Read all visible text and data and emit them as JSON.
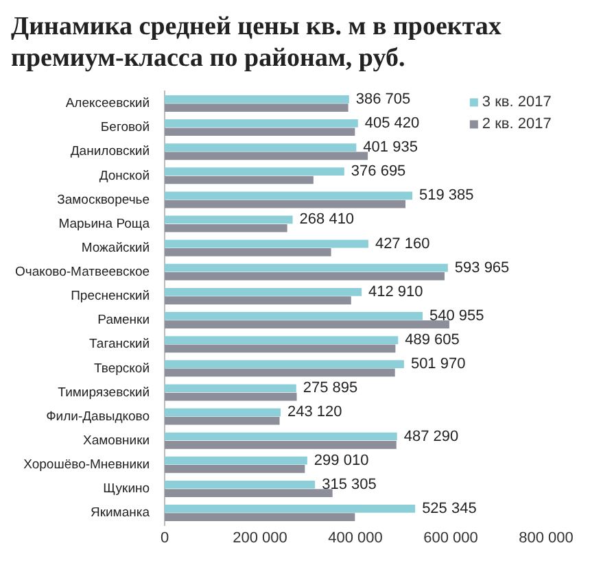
{
  "chart_data": {
    "type": "bar",
    "orientation": "horizontal",
    "title": "Динамика средней цены кв. м в проектах премиум-класса по районам, руб.",
    "categories": [
      "Алексеевский",
      "Беговой",
      "Даниловский",
      "Донской",
      "Замоскворечье",
      "Марьина Роща",
      "Можайский",
      "Очаково-Матвеевское",
      "Пресненский",
      "Раменки",
      "Таганский",
      "Тверской",
      "Тимирязевский",
      "Фили-Давыдково",
      "Хамовники",
      "Хорошёво-Мневники",
      "Щукино",
      "Якиманка"
    ],
    "series": [
      {
        "name": "3 кв. 2017",
        "color": "#8ccfd8",
        "values": [
          386705,
          405420,
          401935,
          376695,
          519385,
          268410,
          427160,
          593965,
          412910,
          540955,
          489605,
          501970,
          275895,
          243120,
          487290,
          299010,
          315305,
          525345
        ],
        "value_labels": [
          "386 705",
          "405 420",
          "401 935",
          "376 695",
          "519 385",
          "268 410",
          "427 160",
          "593 965",
          "412 910",
          "540 955",
          "489 605",
          "501 970",
          "275 895",
          "243 120",
          "487 290",
          "299 010",
          "315 305",
          "525 345"
        ]
      },
      {
        "name": "2 кв. 2017",
        "color": "#8c8f99",
        "values": [
          385000,
          399000,
          426000,
          312000,
          505000,
          257000,
          349000,
          587000,
          391000,
          597000,
          484000,
          483000,
          277000,
          241000,
          486000,
          294000,
          352000,
          399000
        ]
      }
    ],
    "xlim": [
      0,
      800000
    ],
    "xticks": [
      {
        "value": 0,
        "label": "0"
      },
      {
        "value": 200000,
        "label": "200 000"
      },
      {
        "value": 400000,
        "label": "400 000"
      },
      {
        "value": 600000,
        "label": "600 000"
      },
      {
        "value": 800000,
        "label": "800 000"
      }
    ],
    "grid": false,
    "legend": "top right"
  }
}
